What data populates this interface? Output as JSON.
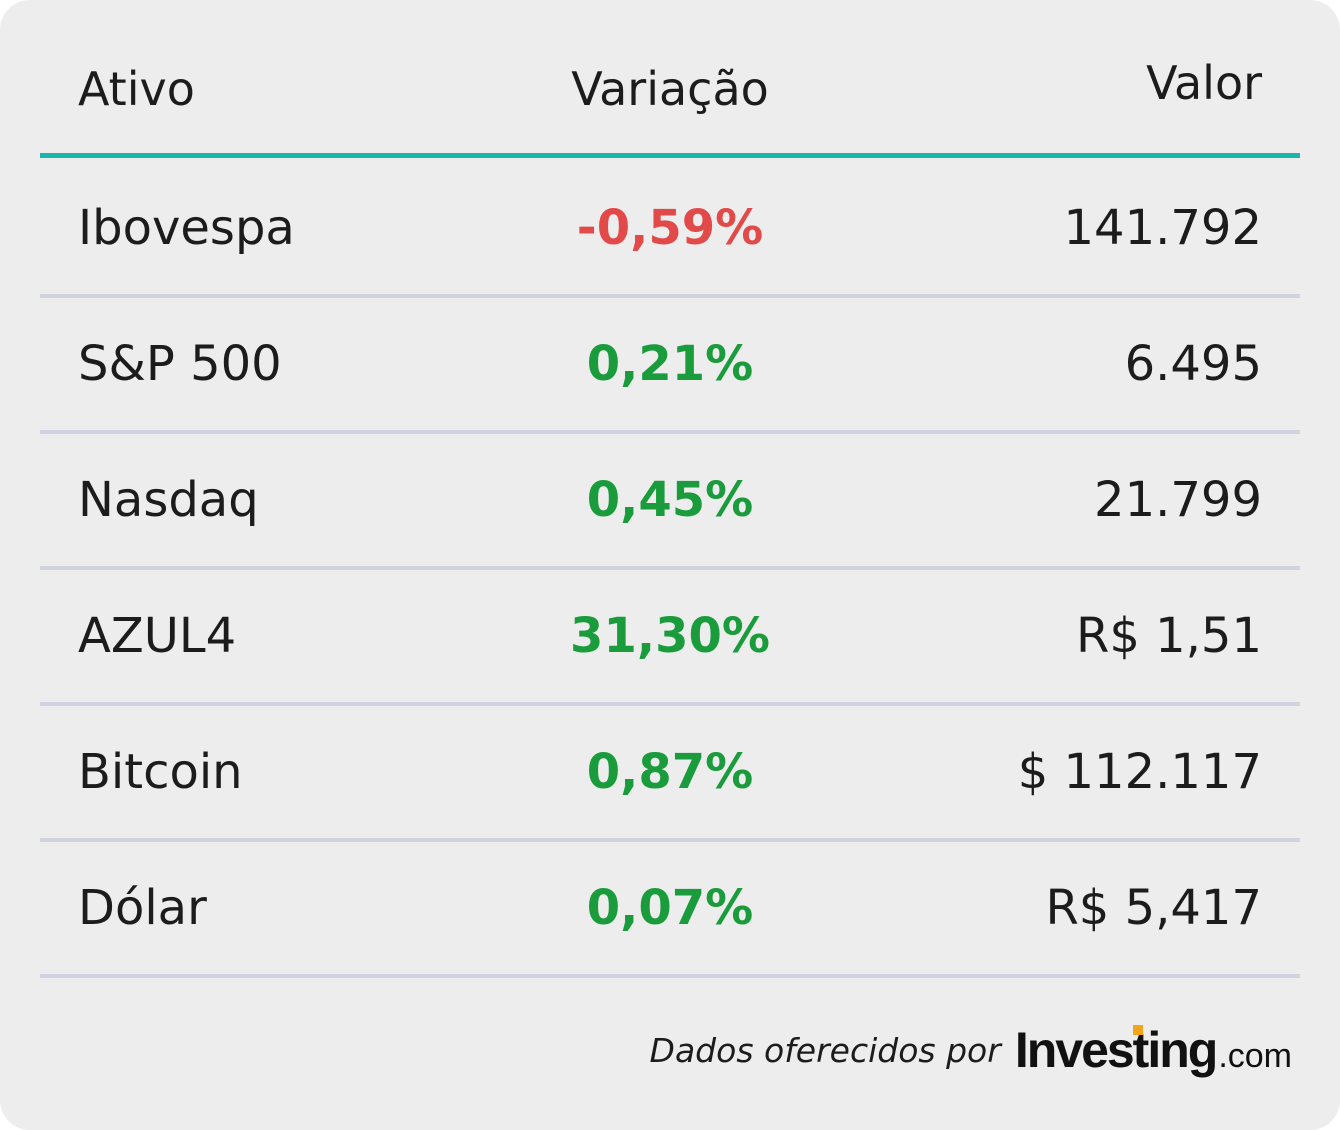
{
  "header": {
    "asset_label": "Ativo",
    "variation_label": "Variação",
    "value_label": "Valor"
  },
  "chart_data": {
    "type": "table",
    "columns": [
      "Ativo",
      "Variação",
      "Valor"
    ],
    "rows": [
      {
        "asset": "Ibovespa",
        "variation": "-0,59%",
        "value": "141.792",
        "trend": "down"
      },
      {
        "asset": "S&P 500",
        "variation": "0,21%",
        "value": "6.495",
        "trend": "up"
      },
      {
        "asset": "Nasdaq",
        "variation": "0,45%",
        "value": "21.799",
        "trend": "up"
      },
      {
        "asset": "AZUL4",
        "variation": "31,30%",
        "value": "R$ 1,51",
        "trend": "up"
      },
      {
        "asset": "Bitcoin",
        "variation": "0,87%",
        "value": "$ 112.117",
        "trend": "up"
      },
      {
        "asset": "Dólar",
        "variation": "0,07%",
        "value": "R$ 5,417",
        "trend": "up"
      }
    ]
  },
  "footer": {
    "credit_text": "Dados oferecidos por",
    "logo_text": "Investing",
    "logo_suffix": ".com"
  },
  "colors": {
    "accent": "#1ab5ad",
    "negative": "#e24a4a",
    "positive": "#1a9c3c",
    "divider": "#cfd4e0",
    "background": "#ededed",
    "logo_accent": "#f3a51a"
  }
}
